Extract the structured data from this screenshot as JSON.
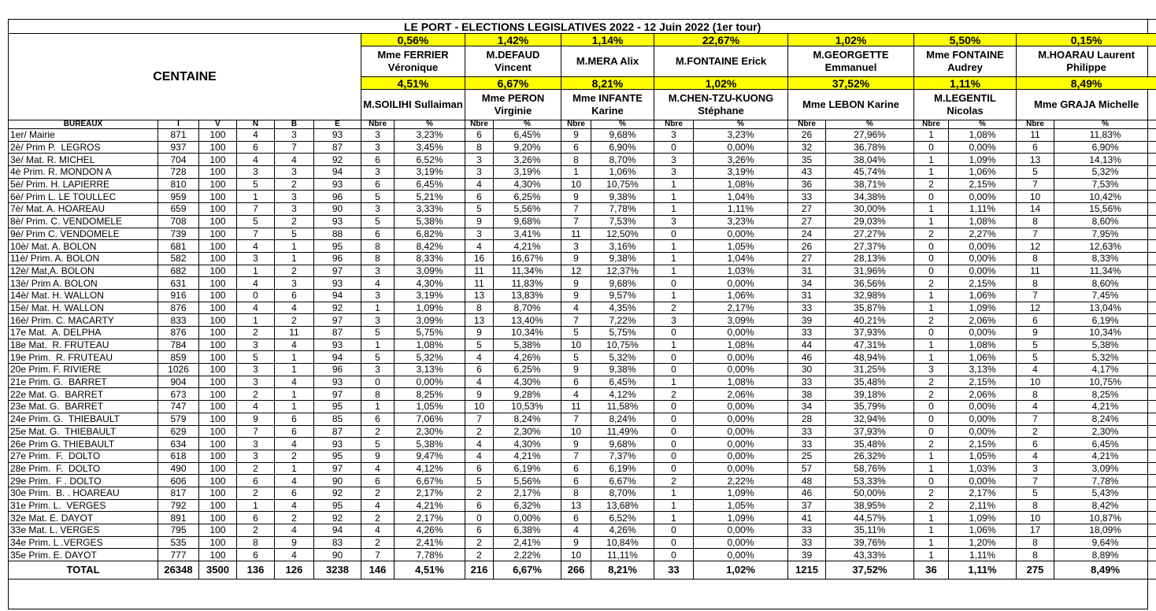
{
  "header": {
    "title": "LE PORT - ELECTIONS LEGISLATIVES 2022 - 12 Juin 2022 (1er tour)",
    "label": "CENTAINE",
    "candidates": [
      {
        "top_pct": "0,56%",
        "top_name": "Mme FERRIER Véronique",
        "bottom_pct": "4,51%",
        "bottom_name": "M.SOILIHI Sullaiman"
      },
      {
        "top_pct": "1,42%",
        "top_name": "M.DEFAUD Vincent",
        "bottom_pct": "6,67%",
        "bottom_name": "Mme PERON Virginie"
      },
      {
        "top_pct": "1,14%",
        "top_name": "M.MERA Alix",
        "bottom_pct": "8,21%",
        "bottom_name": "Mme INFANTE Karine"
      },
      {
        "top_pct": "22,67%",
        "top_name": "M.FONTAINE Erick",
        "bottom_pct": "1,02%",
        "bottom_name": "M.CHEN-TZU-KUONG Stéphane"
      },
      {
        "top_pct": "1,02%",
        "top_name": "M.GEORGETTE Emmanuel",
        "bottom_pct": "37,52%",
        "bottom_name": "Mme LEBON Karine"
      },
      {
        "top_pct": "5,50%",
        "top_name": "Mme FONTAINE Audrey",
        "bottom_pct": "1,11%",
        "bottom_name": "M.LEGENTIL Nicolas"
      },
      {
        "top_pct": "0,15%",
        "top_name": "M.HOARAU Laurent Philippe",
        "bottom_pct": "8,49%",
        "bottom_name": "Mme GRAJA Michelle"
      }
    ]
  },
  "table": {
    "columns": [
      "BUREAUX",
      "I",
      "V",
      "N",
      "B",
      "E"
    ],
    "subcolumns": [
      "Nbre",
      "%"
    ],
    "rows": [
      [
        "1er/ Mairie",
        "871",
        "100",
        "4",
        "3",
        "93",
        "3",
        "3,23%",
        "6",
        "6,45%",
        "9",
        "9,68%",
        "3",
        "3,23%",
        "26",
        "27,96%",
        "1",
        "1,08%",
        "11",
        "11,83%"
      ],
      [
        "2è/ Prim P.  LEGROS",
        "937",
        "100",
        "6",
        "7",
        "87",
        "3",
        "3,45%",
        "8",
        "9,20%",
        "6",
        "6,90%",
        "0",
        "0,00%",
        "32",
        "36,78%",
        "0",
        "0,00%",
        "6",
        "6,90%"
      ],
      [
        "3è/ Mat. R. MICHEL",
        "704",
        "100",
        "4",
        "4",
        "92",
        "6",
        "6,52%",
        "3",
        "3,26%",
        "8",
        "8,70%",
        "3",
        "3,26%",
        "35",
        "38,04%",
        "1",
        "1,09%",
        "13",
        "14,13%"
      ],
      [
        "4è Prim. R. MONDON A",
        "728",
        "100",
        "3",
        "3",
        "94",
        "3",
        "3,19%",
        "3",
        "3,19%",
        "1",
        "1,06%",
        "3",
        "3,19%",
        "43",
        "45,74%",
        "1",
        "1,06%",
        "5",
        "5,32%"
      ],
      [
        "5è/ Prim. H. LAPIERRE",
        "810",
        "100",
        "5",
        "2",
        "93",
        "6",
        "6,45%",
        "4",
        "4,30%",
        "10",
        "10,75%",
        "1",
        "1,08%",
        "36",
        "38,71%",
        "2",
        "2,15%",
        "7",
        "7,53%"
      ],
      [
        "6è/ Prim L. LE TOULLEC",
        "959",
        "100",
        "1",
        "3",
        "96",
        "5",
        "5,21%",
        "6",
        "6,25%",
        "9",
        "9,38%",
        "1",
        "1,04%",
        "33",
        "34,38%",
        "0",
        "0,00%",
        "10",
        "10,42%"
      ],
      [
        "7è/ Mat. A. HOAREAU",
        "659",
        "100",
        "7",
        "3",
        "90",
        "3",
        "3,33%",
        "5",
        "5,56%",
        "7",
        "7,78%",
        "1",
        "1,11%",
        "27",
        "30,00%",
        "1",
        "1,11%",
        "14",
        "15,56%"
      ],
      [
        "8è/ Prim. C. VENDOMELE",
        "708",
        "100",
        "5",
        "2",
        "93",
        "5",
        "5,38%",
        "9",
        "9,68%",
        "7",
        "7,53%",
        "3",
        "3,23%",
        "27",
        "29,03%",
        "1",
        "1,08%",
        "8",
        "8,60%"
      ],
      [
        "9è/ Prim C. VENDOMELE",
        "739",
        "100",
        "7",
        "5",
        "88",
        "6",
        "6,82%",
        "3",
        "3,41%",
        "11",
        "12,50%",
        "0",
        "0,00%",
        "24",
        "27,27%",
        "2",
        "2,27%",
        "7",
        "7,95%"
      ],
      [
        "10è/ Mat. A. BOLON",
        "681",
        "100",
        "4",
        "1",
        "95",
        "8",
        "8,42%",
        "4",
        "4,21%",
        "3",
        "3,16%",
        "1",
        "1,05%",
        "26",
        "27,37%",
        "0",
        "0,00%",
        "12",
        "12,63%"
      ],
      [
        "11è/ Prim. A. BOLON",
        "582",
        "100",
        "3",
        "1",
        "96",
        "8",
        "8,33%",
        "16",
        "16,67%",
        "9",
        "9,38%",
        "1",
        "1,04%",
        "27",
        "28,13%",
        "0",
        "0,00%",
        "8",
        "8,33%"
      ],
      [
        "12è/ Mat,A. BOLON",
        "682",
        "100",
        "1",
        "2",
        "97",
        "3",
        "3,09%",
        "11",
        "11,34%",
        "12",
        "12,37%",
        "1",
        "1,03%",
        "31",
        "31,96%",
        "0",
        "0,00%",
        "11",
        "11,34%"
      ],
      [
        "13è/ Prim A. BOLON",
        "631",
        "100",
        "4",
        "3",
        "93",
        "4",
        "4,30%",
        "11",
        "11,83%",
        "9",
        "9,68%",
        "0",
        "0,00%",
        "34",
        "36,56%",
        "2",
        "2,15%",
        "8",
        "8,60%"
      ],
      [
        "14è/ Mat. H. WALLON",
        "916",
        "100",
        "0",
        "6",
        "94",
        "3",
        "3,19%",
        "13",
        "13,83%",
        "9",
        "9,57%",
        "1",
        "1,06%",
        "31",
        "32,98%",
        "1",
        "1,06%",
        "7",
        "7,45%"
      ],
      [
        "15è/ Mat. H. WALLON",
        "876",
        "100",
        "4",
        "4",
        "92",
        "1",
        "1,09%",
        "8",
        "8,70%",
        "4",
        "4,35%",
        "2",
        "2,17%",
        "33",
        "35,87%",
        "1",
        "1,09%",
        "12",
        "13,04%"
      ],
      [
        "16è/ Prim. C. MACARTY",
        "833",
        "100",
        "1",
        "2",
        "97",
        "3",
        "3,09%",
        "13",
        "13,40%",
        "7",
        "7,22%",
        "3",
        "3,09%",
        "39",
        "40,21%",
        "2",
        "2,06%",
        "6",
        "6,19%"
      ],
      [
        "17e Mat.  A. DELPHA",
        "876",
        "100",
        "2",
        "11",
        "87",
        "5",
        "5,75%",
        "9",
        "10,34%",
        "5",
        "5,75%",
        "0",
        "0,00%",
        "33",
        "37,93%",
        "0",
        "0,00%",
        "9",
        "10,34%"
      ],
      [
        "18e Mat.  R. FRUTEAU",
        "784",
        "100",
        "3",
        "4",
        "93",
        "1",
        "1,08%",
        "5",
        "5,38%",
        "10",
        "10,75%",
        "1",
        "1,08%",
        "44",
        "47,31%",
        "1",
        "1,08%",
        "5",
        "5,38%"
      ],
      [
        "19e Prim.  R. FRUTEAU",
        "859",
        "100",
        "5",
        "1",
        "94",
        "5",
        "5,32%",
        "4",
        "4,26%",
        "5",
        "5,32%",
        "0",
        "0,00%",
        "46",
        "48,94%",
        "1",
        "1,06%",
        "5",
        "5,32%"
      ],
      [
        "20e Prim. F. RIVIERE",
        "1026",
        "100",
        "3",
        "1",
        "96",
        "3",
        "3,13%",
        "6",
        "6,25%",
        "9",
        "9,38%",
        "0",
        "0,00%",
        "30",
        "31,25%",
        "3",
        "3,13%",
        "4",
        "4,17%"
      ],
      [
        "21e Prim. G.  BARRET",
        "904",
        "100",
        "3",
        "4",
        "93",
        "0",
        "0,00%",
        "4",
        "4,30%",
        "6",
        "6,45%",
        "1",
        "1,08%",
        "33",
        "35,48%",
        "2",
        "2,15%",
        "10",
        "10,75%"
      ],
      [
        "22e Mat. G.  BARRET",
        "673",
        "100",
        "2",
        "1",
        "97",
        "8",
        "8,25%",
        "9",
        "9,28%",
        "4",
        "4,12%",
        "2",
        "2,06%",
        "38",
        "39,18%",
        "2",
        "2,06%",
        "8",
        "8,25%"
      ],
      [
        "23e Mat. G.  BARRET",
        "747",
        "100",
        "4",
        "1",
        "95",
        "1",
        "1,05%",
        "10",
        "10,53%",
        "11",
        "11,58%",
        "0",
        "0,00%",
        "34",
        "35,79%",
        "0",
        "0,00%",
        "4",
        "4,21%"
      ],
      [
        "24e Prim. G.  THIEBAULT",
        "579",
        "100",
        "9",
        "6",
        "85",
        "6",
        "7,06%",
        "7",
        "8,24%",
        "7",
        "8,24%",
        "0",
        "0,00%",
        "28",
        "32,94%",
        "0",
        "0,00%",
        "7",
        "8,24%"
      ],
      [
        "25e Mat. G.  THIEBAULT",
        "629",
        "100",
        "7",
        "6",
        "87",
        "2",
        "2,30%",
        "2",
        "2,30%",
        "10",
        "11,49%",
        "0",
        "0,00%",
        "33",
        "37,93%",
        "0",
        "0,00%",
        "2",
        "2,30%"
      ],
      [
        "26e Prim G. THIEBAULT",
        "634",
        "100",
        "3",
        "4",
        "93",
        "5",
        "5,38%",
        "4",
        "4,30%",
        "9",
        "9,68%",
        "0",
        "0,00%",
        "33",
        "35,48%",
        "2",
        "2,15%",
        "6",
        "6,45%"
      ],
      [
        "27e Prim.  F.  DOLTO",
        "618",
        "100",
        "3",
        "2",
        "95",
        "9",
        "9,47%",
        "4",
        "4,21%",
        "7",
        "7,37%",
        "0",
        "0,00%",
        "25",
        "26,32%",
        "1",
        "1,05%",
        "4",
        "4,21%"
      ],
      [
        "28e Prim.  F.  DOLTO",
        "490",
        "100",
        "2",
        "1",
        "97",
        "4",
        "4,12%",
        "6",
        "6,19%",
        "6",
        "6,19%",
        "0",
        "0,00%",
        "57",
        "58,76%",
        "1",
        "1,03%",
        "3",
        "3,09%"
      ],
      [
        "29e Prim.  F . DOLTO",
        "606",
        "100",
        "6",
        "4",
        "90",
        "6",
        "6,67%",
        "5",
        "5,56%",
        "6",
        "6,67%",
        "2",
        "2,22%",
        "48",
        "53,33%",
        "0",
        "0,00%",
        "7",
        "7,78%"
      ],
      [
        "30e Prim.  B. . HOAREAU",
        "817",
        "100",
        "2",
        "6",
        "92",
        "2",
        "2,17%",
        "2",
        "2,17%",
        "8",
        "8,70%",
        "1",
        "1,09%",
        "46",
        "50,00%",
        "2",
        "2,17%",
        "5",
        "5,43%"
      ],
      [
        "31e Prim. L.  VERGES",
        "792",
        "100",
        "1",
        "4",
        "95",
        "4",
        "4,21%",
        "6",
        "6,32%",
        "13",
        "13,68%",
        "1",
        "1,05%",
        "37",
        "38,95%",
        "2",
        "2,11%",
        "8",
        "8,42%"
      ],
      [
        "32e Mat. E. DAYOT",
        "891",
        "100",
        "6",
        "2",
        "92",
        "2",
        "2,17%",
        "0",
        "0,00%",
        "6",
        "6,52%",
        "1",
        "1,09%",
        "41",
        "44,57%",
        "1",
        "1,09%",
        "10",
        "10,87%"
      ],
      [
        "33e Mat. L. VERGES",
        "795",
        "100",
        "2",
        "4",
        "94",
        "4",
        "4,26%",
        "6",
        "6,38%",
        "4",
        "4,26%",
        "0",
        "0,00%",
        "33",
        "35,11%",
        "1",
        "1,06%",
        "17",
        "18,09%"
      ],
      [
        "34e Prim. L .VERGES",
        "535",
        "100",
        "8",
        "9",
        "83",
        "2",
        "2,41%",
        "2",
        "2,41%",
        "9",
        "10,84%",
        "0",
        "0,00%",
        "33",
        "39,76%",
        "1",
        "1,20%",
        "8",
        "9,64%"
      ],
      [
        "35e Prim. E. DAYOT",
        "777",
        "100",
        "6",
        "4",
        "90",
        "7",
        "7,78%",
        "2",
        "2,22%",
        "10",
        "11,11%",
        "0",
        "0,00%",
        "39",
        "43,33%",
        "1",
        "1,11%",
        "8",
        "8,89%"
      ]
    ],
    "total": [
      "TOTAL",
      "26348",
      "3500",
      "136",
      "126",
      "3238",
      "146",
      "4,51%",
      "216",
      "6,67%",
      "266",
      "8,21%",
      "33",
      "1,02%",
      "1215",
      "37,52%",
      "36",
      "1,11%",
      "275",
      "8,49%"
    ]
  }
}
